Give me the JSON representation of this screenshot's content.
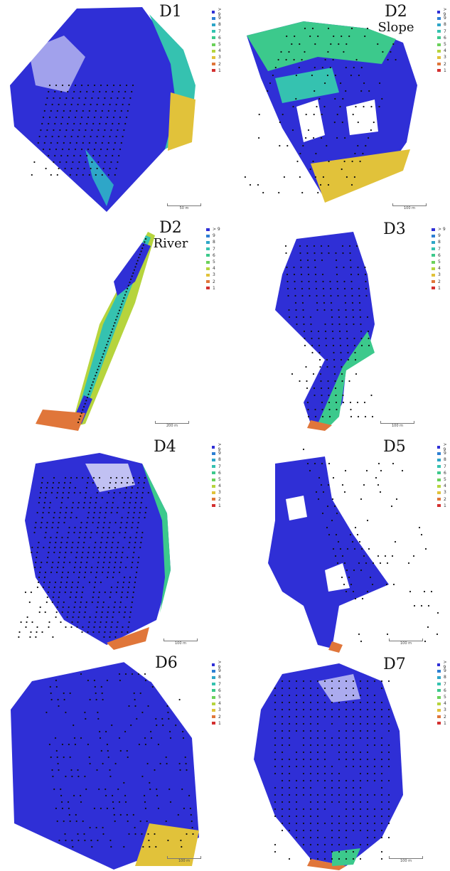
{
  "legend": {
    "labels": [
      "> 9",
      "9",
      "8",
      "7",
      "6",
      "5",
      "4",
      "3",
      "2",
      "1"
    ],
    "colors": [
      "#2f2fd6",
      "#2d7fd3",
      "#2ea6c8",
      "#35c2b0",
      "#3cc98c",
      "#6bd15a",
      "#b6d43d",
      "#e1c23a",
      "#e0763a",
      "#d33030"
    ]
  },
  "panels": [
    {
      "key": "d1",
      "title_line1": "D1",
      "title_line2": "",
      "scale_label": "50 m",
      "icon": "map-d1-icon"
    },
    {
      "key": "d2s",
      "title_line1": "D2",
      "title_line2": "Slope",
      "scale_label": "100 m",
      "icon": "map-d2-slope-icon"
    },
    {
      "key": "d2r",
      "title_line1": "D2",
      "title_line2": "River",
      "scale_label": "200 m",
      "icon": "map-d2-river-icon"
    },
    {
      "key": "d3",
      "title_line1": "D3",
      "title_line2": "",
      "scale_label": "100 m",
      "icon": "map-d3-icon"
    },
    {
      "key": "d4",
      "title_line1": "D4",
      "title_line2": "",
      "scale_label": "100 m",
      "icon": "map-d4-icon"
    },
    {
      "key": "d5",
      "title_line1": "D5",
      "title_line2": "",
      "scale_label": "100 m",
      "icon": "map-d5-icon"
    },
    {
      "key": "d6",
      "title_line1": "D6",
      "title_line2": "",
      "scale_label": "100 m",
      "icon": "map-d6-icon"
    },
    {
      "key": "d7",
      "title_line1": "D7",
      "title_line2": "",
      "scale_label": "100 m",
      "icon": "map-d7-icon"
    }
  ]
}
